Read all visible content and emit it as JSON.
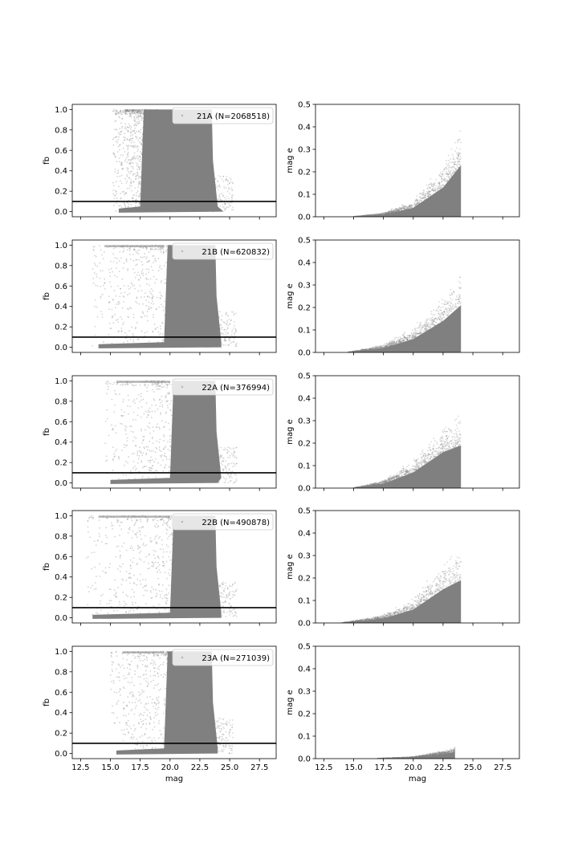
{
  "chart_data": [
    {
      "type": "scatter",
      "panel": "fb",
      "legend": "21A (N=2068518)",
      "ylabel": "fb",
      "xlim": [
        11.8,
        28.9
      ],
      "ylim": [
        -0.05,
        1.05
      ],
      "reference_line": 0.1,
      "xticks": [
        12.5,
        15.0,
        17.5,
        20.0,
        22.5,
        25.0,
        27.5
      ],
      "xtick_labels": [],
      "yticks": [
        0.0,
        0.2,
        0.4,
        0.6,
        0.8,
        1.0
      ],
      "ytick_labels": [
        "0.0",
        "0.2",
        "0.4",
        "0.6",
        "0.8",
        "1.0"
      ],
      "legend_location": "upper right",
      "color": "#808080",
      "distribution": {
        "core_mag_range": [
          17.5,
          23.5
        ],
        "faint_edge": 24.5,
        "sparse_bright_mag_range": [
          15.2,
          18.0
        ]
      }
    },
    {
      "type": "scatter",
      "panel": "mag_e",
      "ylabel": "mag e",
      "xlim": [
        11.8,
        28.9
      ],
      "ylim": [
        0.0,
        0.5
      ],
      "xticks": [
        12.5,
        15.0,
        17.5,
        20.0,
        22.5,
        25.0,
        27.5
      ],
      "xtick_labels": [],
      "yticks": [
        0.0,
        0.1,
        0.2,
        0.3,
        0.4,
        0.5
      ],
      "ytick_labels": [
        "0.0",
        "0.1",
        "0.2",
        "0.3",
        "0.4",
        "0.5"
      ],
      "color": "#808080",
      "trend": [
        {
          "mag": 15.0,
          "mag_e": 0.0
        },
        {
          "mag": 17.5,
          "mag_e": 0.01
        },
        {
          "mag": 20.0,
          "mag_e": 0.04
        },
        {
          "mag": 22.5,
          "mag_e": 0.13
        },
        {
          "mag": 24.0,
          "mag_e": 0.23
        }
      ]
    },
    {
      "type": "scatter",
      "panel": "fb",
      "legend": "21B (N=620832)",
      "ylabel": "fb",
      "xlim": [
        11.8,
        28.9
      ],
      "ylim": [
        -0.05,
        1.05
      ],
      "reference_line": 0.1,
      "xticks": [
        12.5,
        15.0,
        17.5,
        20.0,
        22.5,
        25.0,
        27.5
      ],
      "xtick_labels": [],
      "yticks": [
        0.0,
        0.2,
        0.4,
        0.6,
        0.8,
        1.0
      ],
      "ytick_labels": [
        "0.0",
        "0.2",
        "0.4",
        "0.6",
        "0.8",
        "1.0"
      ],
      "legend_location": "upper right",
      "color": "#808080",
      "distribution": {
        "core_mag_range": [
          19.5,
          23.8
        ],
        "faint_edge": 24.3,
        "sparse_bright_mag_range": [
          13.5,
          19.5
        ]
      }
    },
    {
      "type": "scatter",
      "panel": "mag_e",
      "ylabel": "mag e",
      "xlim": [
        11.8,
        28.9
      ],
      "ylim": [
        0.0,
        0.5
      ],
      "xticks": [
        12.5,
        15.0,
        17.5,
        20.0,
        22.5,
        25.0,
        27.5
      ],
      "xtick_labels": [],
      "yticks": [
        0.0,
        0.1,
        0.2,
        0.3,
        0.4,
        0.5
      ],
      "ytick_labels": [
        "0.0",
        "0.1",
        "0.2",
        "0.3",
        "0.4",
        "0.5"
      ],
      "color": "#808080",
      "trend": [
        {
          "mag": 14.5,
          "mag_e": 0.0
        },
        {
          "mag": 17.5,
          "mag_e": 0.02
        },
        {
          "mag": 20.0,
          "mag_e": 0.06
        },
        {
          "mag": 22.5,
          "mag_e": 0.14
        },
        {
          "mag": 24.0,
          "mag_e": 0.21
        }
      ]
    },
    {
      "type": "scatter",
      "panel": "fb",
      "legend": "22A (N=376994)",
      "ylabel": "fb",
      "xlim": [
        11.8,
        28.9
      ],
      "ylim": [
        -0.05,
        1.05
      ],
      "reference_line": 0.1,
      "xticks": [
        12.5,
        15.0,
        17.5,
        20.0,
        22.5,
        25.0,
        27.5
      ],
      "xtick_labels": [],
      "yticks": [
        0.0,
        0.2,
        0.4,
        0.6,
        0.8,
        1.0
      ],
      "ytick_labels": [
        "0.0",
        "0.2",
        "0.4",
        "0.6",
        "0.8",
        "1.0"
      ],
      "legend_location": "upper right",
      "color": "#808080",
      "distribution": {
        "core_mag_range": [
          20.0,
          23.8
        ],
        "faint_edge": 24.0,
        "sparse_bright_mag_range": [
          14.5,
          20.0
        ]
      }
    },
    {
      "type": "scatter",
      "panel": "mag_e",
      "ylabel": "mag e",
      "xlim": [
        11.8,
        28.9
      ],
      "ylim": [
        0.0,
        0.5
      ],
      "xticks": [
        12.5,
        15.0,
        17.5,
        20.0,
        22.5,
        25.0,
        27.5
      ],
      "xtick_labels": [],
      "yticks": [
        0.0,
        0.1,
        0.2,
        0.3,
        0.4,
        0.5
      ],
      "ytick_labels": [
        "0.0",
        "0.1",
        "0.2",
        "0.3",
        "0.4",
        "0.5"
      ],
      "color": "#808080",
      "trend": [
        {
          "mag": 15.0,
          "mag_e": 0.0
        },
        {
          "mag": 17.5,
          "mag_e": 0.02
        },
        {
          "mag": 20.0,
          "mag_e": 0.07
        },
        {
          "mag": 22.5,
          "mag_e": 0.16
        },
        {
          "mag": 24.0,
          "mag_e": 0.19
        }
      ]
    },
    {
      "type": "scatter",
      "panel": "fb",
      "legend": "22B (N=490878)",
      "ylabel": "fb",
      "xlim": [
        11.8,
        28.9
      ],
      "ylim": [
        -0.05,
        1.05
      ],
      "reference_line": 0.1,
      "xticks": [
        12.5,
        15.0,
        17.5,
        20.0,
        22.5,
        25.0,
        27.5
      ],
      "xtick_labels": [],
      "yticks": [
        0.0,
        0.2,
        0.4,
        0.6,
        0.8,
        1.0
      ],
      "ytick_labels": [
        "0.0",
        "0.2",
        "0.4",
        "0.6",
        "0.8",
        "1.0"
      ],
      "legend_location": "upper right",
      "color": "#808080",
      "distribution": {
        "core_mag_range": [
          20.0,
          23.8
        ],
        "faint_edge": 24.3,
        "sparse_bright_mag_range": [
          13.0,
          20.0
        ]
      }
    },
    {
      "type": "scatter",
      "panel": "mag_e",
      "ylabel": "mag e",
      "xlim": [
        11.8,
        28.9
      ],
      "ylim": [
        0.0,
        0.5
      ],
      "xticks": [
        12.5,
        15.0,
        17.5,
        20.0,
        22.5,
        25.0,
        27.5
      ],
      "xtick_labels": [],
      "yticks": [
        0.0,
        0.1,
        0.2,
        0.3,
        0.4,
        0.5
      ],
      "ytick_labels": [
        "0.0",
        "0.1",
        "0.2",
        "0.3",
        "0.4",
        "0.5"
      ],
      "color": "#808080",
      "trend": [
        {
          "mag": 14.0,
          "mag_e": 0.0
        },
        {
          "mag": 17.5,
          "mag_e": 0.02
        },
        {
          "mag": 20.0,
          "mag_e": 0.06
        },
        {
          "mag": 22.5,
          "mag_e": 0.15
        },
        {
          "mag": 24.0,
          "mag_e": 0.19
        }
      ]
    },
    {
      "type": "scatter",
      "panel": "fb",
      "legend": "23A (N=271039)",
      "ylabel": "fb",
      "xlabel": "mag",
      "xlim": [
        11.8,
        28.9
      ],
      "ylim": [
        -0.05,
        1.05
      ],
      "reference_line": 0.1,
      "xticks": [
        12.5,
        15.0,
        17.5,
        20.0,
        22.5,
        25.0,
        27.5
      ],
      "xtick_labels": [
        "12.5",
        "15.0",
        "17.5",
        "20.0",
        "22.5",
        "25.0",
        "27.5"
      ],
      "yticks": [
        0.0,
        0.2,
        0.4,
        0.6,
        0.8,
        1.0
      ],
      "ytick_labels": [
        "0.0",
        "0.2",
        "0.4",
        "0.6",
        "0.8",
        "1.0"
      ],
      "legend_location": "upper right",
      "color": "#808080",
      "distribution": {
        "core_mag_range": [
          19.5,
          23.5
        ],
        "faint_edge": 24.0,
        "sparse_bright_mag_range": [
          15.0,
          19.5
        ]
      }
    },
    {
      "type": "scatter",
      "panel": "mag_e",
      "ylabel": "mag e",
      "xlabel": "mag",
      "xlim": [
        11.8,
        28.9
      ],
      "ylim": [
        0.0,
        0.5
      ],
      "xticks": [
        12.5,
        15.0,
        17.5,
        20.0,
        22.5,
        25.0,
        27.5
      ],
      "xtick_labels": [
        "12.5",
        "15.0",
        "17.5",
        "20.0",
        "22.5",
        "25.0",
        "27.5"
      ],
      "yticks": [
        0.0,
        0.1,
        0.2,
        0.3,
        0.4,
        0.5
      ],
      "ytick_labels": [
        "0.0",
        "0.1",
        "0.2",
        "0.3",
        "0.4",
        "0.5"
      ],
      "color": "#808080",
      "trend": [
        {
          "mag": 17.0,
          "mag_e": 0.0
        },
        {
          "mag": 20.0,
          "mag_e": 0.005
        },
        {
          "mag": 22.5,
          "mag_e": 0.02
        },
        {
          "mag": 23.5,
          "mag_e": 0.03
        }
      ]
    }
  ]
}
